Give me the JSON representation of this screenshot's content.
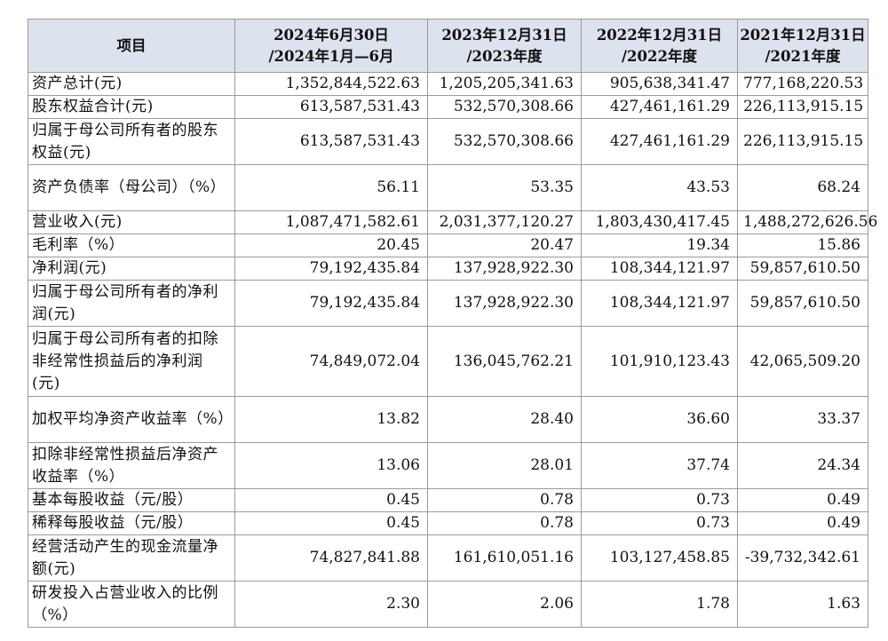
{
  "header": {
    "item": "项目",
    "cols": [
      {
        "line1": "2024年6月30日",
        "line2": "/2024年1月—6月"
      },
      {
        "line1": "2023年12月31日",
        "line2": "/2023年度"
      },
      {
        "line1": "2022年12月31日",
        "line2": "/2022年度"
      },
      {
        "line1": "2021年12月31日",
        "line2": "/2021年度"
      }
    ]
  },
  "rows": [
    {
      "label": "资产总计(元)",
      "values": [
        "1,352,844,522.63",
        "1,205,205,341.63",
        "905,638,341.47",
        "777,168,220.53"
      ]
    },
    {
      "label": "股东权益合计(元)",
      "values": [
        "613,587,531.43",
        "532,570,308.66",
        "427,461,161.29",
        "226,113,915.15"
      ]
    },
    {
      "label": "归属于母公司所有者的股东权益(元)",
      "values": [
        "613,587,531.43",
        "532,570,308.66",
        "427,461,161.29",
        "226,113,915.15"
      ]
    },
    {
      "label": "资产负债率（母公司）（%）",
      "values": [
        "56.11",
        "53.35",
        "43.53",
        "68.24"
      ]
    },
    {
      "label": "营业收入(元)",
      "values": [
        "1,087,471,582.61",
        "2,031,377,120.27",
        "1,803,430,417.45",
        "1,488,272,626.56"
      ]
    },
    {
      "label": "毛利率（%）",
      "values": [
        "20.45",
        "20.47",
        "19.34",
        "15.86"
      ]
    },
    {
      "label": "净利润(元)",
      "values": [
        "79,192,435.84",
        "137,928,922.30",
        "108,344,121.97",
        "59,857,610.50"
      ]
    },
    {
      "label": "归属于母公司所有者的净利润(元)",
      "values": [
        "79,192,435.84",
        "137,928,922.30",
        "108,344,121.97",
        "59,857,610.50"
      ]
    },
    {
      "label": "归属于母公司所有者的扣除非经常性损益后的净利润(元)",
      "values": [
        "74,849,072.04",
        "136,045,762.21",
        "101,910,123.43",
        "42,065,509.20"
      ]
    },
    {
      "label": "加权平均净资产收益率（%）",
      "values": [
        "13.82",
        "28.40",
        "36.60",
        "33.37"
      ]
    },
    {
      "label": "扣除非经常性损益后净资产收益率（%）",
      "values": [
        "13.06",
        "28.01",
        "37.74",
        "24.34"
      ]
    },
    {
      "label": "基本每股收益（元/股）",
      "values": [
        "0.45",
        "0.78",
        "0.73",
        "0.49"
      ]
    },
    {
      "label": "稀释每股收益（元/股）",
      "values": [
        "0.45",
        "0.78",
        "0.73",
        "0.49"
      ]
    },
    {
      "label": "经营活动产生的现金流量净额(元)",
      "values": [
        "74,827,841.88",
        "161,610,051.16",
        "103,127,458.85",
        "-39,732,342.61"
      ]
    },
    {
      "label": "研发投入占营业收入的比例（%）",
      "values": [
        "2.30",
        "2.06",
        "1.78",
        "1.63"
      ]
    }
  ]
}
